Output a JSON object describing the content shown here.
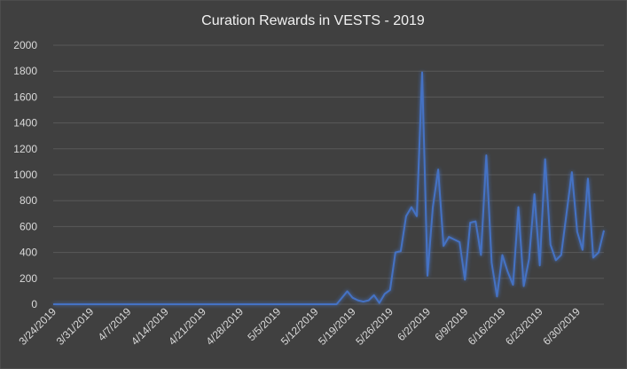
{
  "chart_data": {
    "type": "line",
    "title": "Curation Rewards in VESTS - 2019",
    "categories": [
      "3/24/2019",
      null,
      null,
      null,
      null,
      null,
      null,
      "3/31/2019",
      null,
      null,
      null,
      null,
      null,
      null,
      "4/7/2019",
      null,
      null,
      null,
      null,
      null,
      null,
      "4/14/2019",
      null,
      null,
      null,
      null,
      null,
      null,
      "4/21/2019",
      null,
      null,
      null,
      null,
      null,
      null,
      "4/28/2019",
      null,
      null,
      null,
      null,
      null,
      null,
      "5/5/2019",
      null,
      null,
      null,
      null,
      null,
      null,
      "5/12/2019",
      null,
      null,
      null,
      null,
      null,
      null,
      "5/19/2019",
      null,
      null,
      null,
      null,
      null,
      null,
      "5/26/2019",
      null,
      null,
      null,
      null,
      null,
      null,
      "6/2/2019",
      null,
      null,
      null,
      null,
      null,
      null,
      "6/9/2019",
      null,
      null,
      null,
      null,
      null,
      null,
      "6/16/2019",
      null,
      null,
      null,
      null,
      null,
      null,
      "6/23/2019",
      null,
      null,
      null,
      null,
      null,
      null,
      "6/30/2019",
      null,
      null,
      null,
      null,
      null
    ],
    "values": [
      0,
      0,
      0,
      0,
      0,
      0,
      0,
      0,
      0,
      0,
      0,
      0,
      0,
      0,
      0,
      0,
      0,
      0,
      0,
      0,
      0,
      0,
      0,
      0,
      0,
      0,
      0,
      0,
      0,
      0,
      0,
      0,
      0,
      0,
      0,
      0,
      0,
      0,
      0,
      0,
      0,
      0,
      0,
      0,
      0,
      0,
      0,
      0,
      0,
      0,
      0,
      0,
      0,
      0,
      50,
      100,
      50,
      30,
      20,
      30,
      70,
      10,
      80,
      110,
      400,
      410,
      680,
      750,
      680,
      1790,
      220,
      750,
      1040,
      450,
      520,
      500,
      480,
      190,
      630,
      640,
      380,
      1150,
      320,
      60,
      380,
      250,
      150,
      750,
      140,
      350,
      850,
      300,
      1120,
      460,
      340,
      380,
      700,
      1020,
      560,
      420,
      970,
      360,
      400,
      570
    ],
    "color": "#4472c4",
    "ylim": [
      0,
      2000
    ],
    "yticks": [
      0,
      200,
      400,
      600,
      800,
      1000,
      1200,
      1400,
      1600,
      1800,
      2000
    ],
    "grid": true
  }
}
